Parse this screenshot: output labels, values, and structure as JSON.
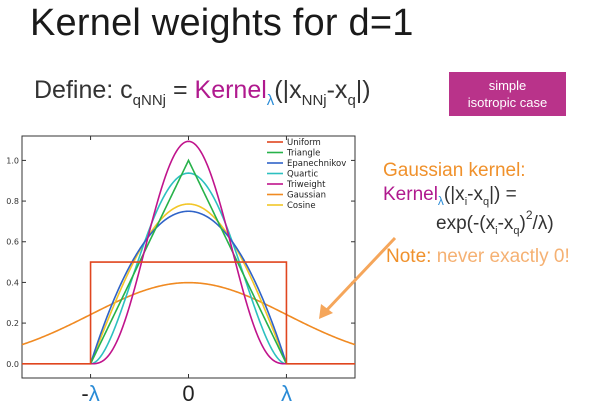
{
  "title": "Kernel weights for d=1",
  "define": {
    "prefix": "Define: c",
    "c_sub": "qNNj",
    "equals": " = ",
    "kernel": "Kernel",
    "lambda": "λ",
    "arg_open": "(|x",
    "x_sub1": "NNj",
    "minus": "-x",
    "x_sub2": "q",
    "arg_close": "|)"
  },
  "badge": {
    "line1": "simple",
    "line2": "isotropic case"
  },
  "annotation": {
    "title": "Gaussian kernel:",
    "kernel": "Kernel",
    "lambda": "λ",
    "formula1_rest": "(|x",
    "f1_sub_i": "i",
    "f1_minus": "-x",
    "f1_sub_q": "q",
    "f1_end": "|) =",
    "f2_start": "exp(-(x",
    "f2_sub_i": "i",
    "f2_minus": "-x",
    "f2_sub_q": "q",
    "f2_close": ")",
    "f2_sup": "2",
    "f2_slash": "/",
    "f2_lambda": "λ)",
    "note_label": "Note:",
    "note_text": " never exactly 0!"
  },
  "colors": {
    "Uniform": "#e0461f",
    "Triangle": "#27b24a",
    "Epanechnikov": "#2f63c8",
    "Quartic": "#2cc0c0",
    "Triweight": "#c0148c",
    "Gaussian": "#f08a22",
    "Cosine": "#f2c628",
    "arrow": "#f5a65b"
  },
  "chart_data": {
    "type": "line",
    "x_tick_labels": [
      "-λ",
      "0",
      "λ"
    ],
    "y_ticks": [
      "0.0",
      "0.2",
      "0.4",
      "0.6",
      "0.8",
      "1.0"
    ],
    "xlim": [
      -1.7,
      1.7
    ],
    "ylim": [
      -0.07,
      1.12
    ],
    "legend_position": "top-right",
    "series": [
      {
        "name": "Uniform",
        "kind": "uniform",
        "peak": 0.5
      },
      {
        "name": "Triangle",
        "kind": "triangle",
        "peak": 1.0
      },
      {
        "name": "Epanechnikov",
        "kind": "epanechnikov",
        "peak": 0.75
      },
      {
        "name": "Quartic",
        "kind": "quartic",
        "peak": 0.9375
      },
      {
        "name": "Triweight",
        "kind": "triweight",
        "peak": 1.09375
      },
      {
        "name": "Gaussian",
        "kind": "gaussian",
        "peak": 0.3989
      },
      {
        "name": "Cosine",
        "kind": "cosine",
        "peak": 0.7854
      }
    ]
  }
}
